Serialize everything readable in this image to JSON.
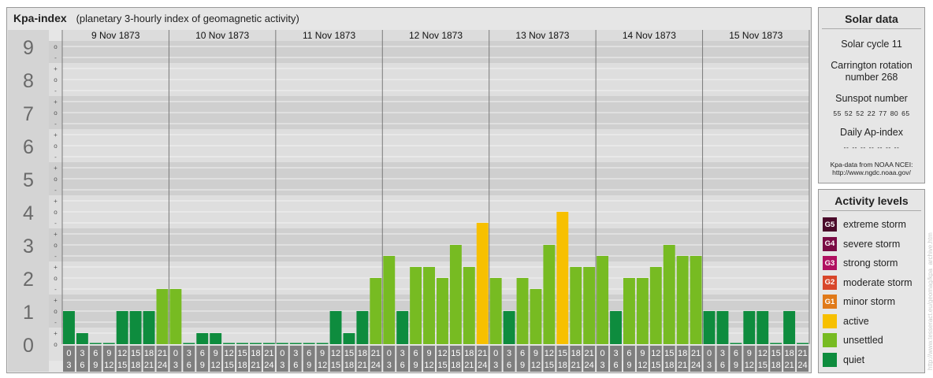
{
  "header": {
    "title": "Kpa-index",
    "subtitle": "(planetary 3-hourly index of geomagnetic activity)"
  },
  "chart_data": {
    "type": "bar",
    "ylim": [
      0,
      9
    ],
    "y_major_ticks": [
      "0",
      "1",
      "2",
      "3",
      "4",
      "5",
      "6",
      "7",
      "8",
      "9"
    ],
    "y_minor_labels": [
      "o",
      "-",
      "+"
    ],
    "days": [
      "9 Nov 1873",
      "10 Nov 1873",
      "11 Nov 1873",
      "12 Nov 1873",
      "13 Nov 1873",
      "14 Nov 1873",
      "15 Nov 1873"
    ],
    "interval_labels": [
      [
        "0",
        "3"
      ],
      [
        "3",
        "6"
      ],
      [
        "6",
        "9"
      ],
      [
        "9",
        "12"
      ],
      [
        "12",
        "15"
      ],
      [
        "15",
        "18"
      ],
      [
        "18",
        "21"
      ],
      [
        "21",
        "24"
      ]
    ],
    "values": [
      [
        1.0,
        0.333,
        0.0,
        0.0,
        1.0,
        1.0,
        1.0,
        1.667
      ],
      [
        1.667,
        0.0,
        0.333,
        0.333,
        0.0,
        0.0,
        0.0,
        0.0
      ],
      [
        0.0,
        0.0,
        0.0,
        0.0,
        1.0,
        0.333,
        1.0,
        2.0
      ],
      [
        2.667,
        1.0,
        2.333,
        2.333,
        2.0,
        3.0,
        2.333,
        3.667
      ],
      [
        2.0,
        1.0,
        2.0,
        1.667,
        3.0,
        4.0,
        2.333,
        2.333
      ],
      [
        2.667,
        1.0,
        2.0,
        2.0,
        2.333,
        3.0,
        2.667,
        2.667
      ],
      [
        1.0,
        1.0,
        0.0,
        1.0,
        1.0,
        0.0,
        1.0,
        0.0
      ]
    ],
    "colors": {
      "quiet": "#0e8c3e",
      "unsettled": "#77bb22",
      "active": "#f7c000",
      "minor": "#e07a1a"
    },
    "grid": true
  },
  "solar": {
    "heading": "Solar data",
    "cycle": "Solar cycle 11",
    "carrington_line1": "Carrington rotation",
    "carrington_line2": "number 268",
    "sunspot_label": "Sunspot number",
    "sunspot_values": [
      "55",
      "52",
      "52",
      "22",
      "77",
      "80",
      "65"
    ],
    "ap_label": "Daily Ap-index",
    "ap_values": [
      "--",
      "--",
      "--",
      "--",
      "--",
      "--",
      "--"
    ],
    "source_line1": "Kpa-data from NOAA NCEI:",
    "source_line2": "http://www.ngdc.noaa.gov/"
  },
  "activity": {
    "heading": "Activity levels",
    "levels": [
      {
        "badge": "G5",
        "label": "extreme storm",
        "color": "#4a0a2a"
      },
      {
        "badge": "G4",
        "label": "severe storm",
        "color": "#7a0a44"
      },
      {
        "badge": "G3",
        "label": "strong storm",
        "color": "#b01060"
      },
      {
        "badge": "G2",
        "label": "moderate storm",
        "color": "#d8462a"
      },
      {
        "badge": "G1",
        "label": "minor storm",
        "color": "#e07a1a"
      },
      {
        "badge": "",
        "label": "active",
        "color": "#f7c000"
      },
      {
        "badge": "",
        "label": "unsettled",
        "color": "#77bb22"
      },
      {
        "badge": "",
        "label": "quiet",
        "color": "#0e8c3e"
      }
    ]
  },
  "credit": "http://www.tesseract.eu/geomag/kpa_archive.htm"
}
